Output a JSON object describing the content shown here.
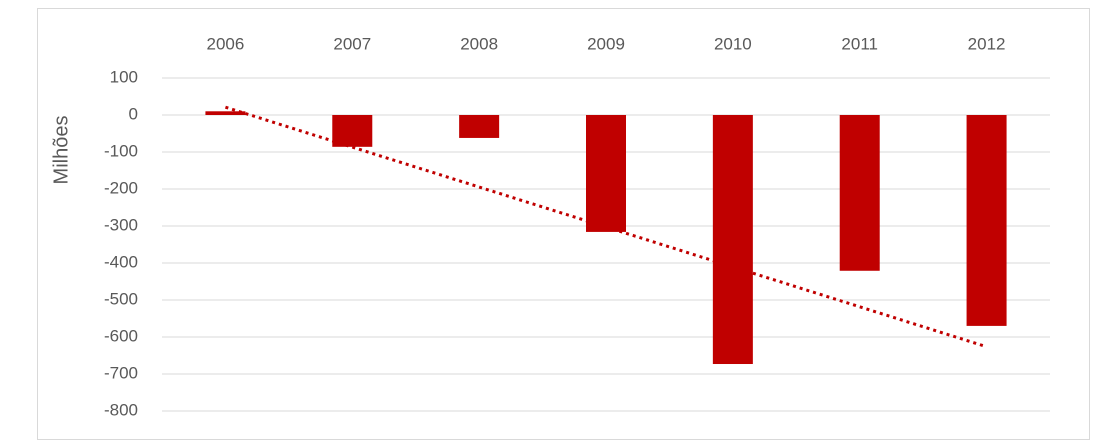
{
  "chart_data": {
    "type": "bar",
    "y_label": "Milhões",
    "categories": [
      "2006",
      "2007",
      "2008",
      "2009",
      "2010",
      "2011",
      "2012"
    ],
    "values": [
      10,
      -86,
      -62,
      -316,
      -673,
      -421,
      -570
    ],
    "color": "#c00000",
    "ylim": [
      -800,
      100
    ],
    "yticks": [
      -800,
      -700,
      -600,
      -500,
      -400,
      -300,
      -200,
      -100,
      0,
      100
    ],
    "grid": true,
    "trendline": "linear",
    "category_axis_position": "top"
  }
}
